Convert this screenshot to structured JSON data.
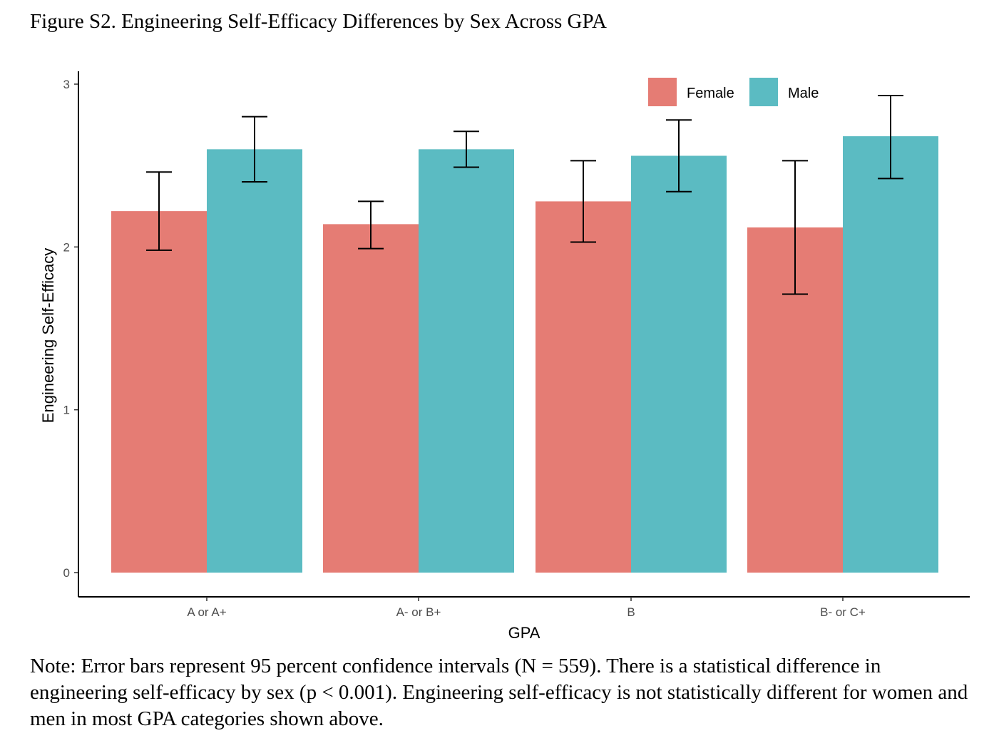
{
  "figure": {
    "title": "Figure S2. Engineering Self-Efficacy Differences by Sex Across GPA",
    "note": "Note: Error bars represent 95 percent confidence intervals (N = 559). There is a statistical difference in engineering self-efficacy by sex (p < 0.001). Engineering self-efficacy is not statistically different for women and men in most GPA categories shown above."
  },
  "chart_data": {
    "type": "bar",
    "xlabel": "GPA",
    "ylabel": "Engineering Self-Efficacy",
    "categories": [
      "A or A+",
      "A- or B+",
      "B",
      "B- or C+"
    ],
    "ylim": [
      0,
      3
    ],
    "yticks": [
      0,
      1,
      2,
      3
    ],
    "yticks_labels": [
      "0",
      "1",
      "2",
      "3"
    ],
    "grid": false,
    "legend_position": "top-right",
    "series": [
      {
        "name": "Female",
        "color": "#e57c74",
        "values": [
          2.22,
          2.14,
          2.28,
          2.12
        ],
        "ci_low": [
          1.98,
          1.99,
          2.03,
          1.71
        ],
        "ci_high": [
          2.46,
          2.28,
          2.53,
          2.53
        ]
      },
      {
        "name": "Male",
        "color": "#5bbbc2",
        "values": [
          2.6,
          2.6,
          2.56,
          2.68
        ],
        "ci_low": [
          2.4,
          2.49,
          2.34,
          2.42
        ],
        "ci_high": [
          2.8,
          2.71,
          2.78,
          2.93
        ]
      }
    ]
  }
}
